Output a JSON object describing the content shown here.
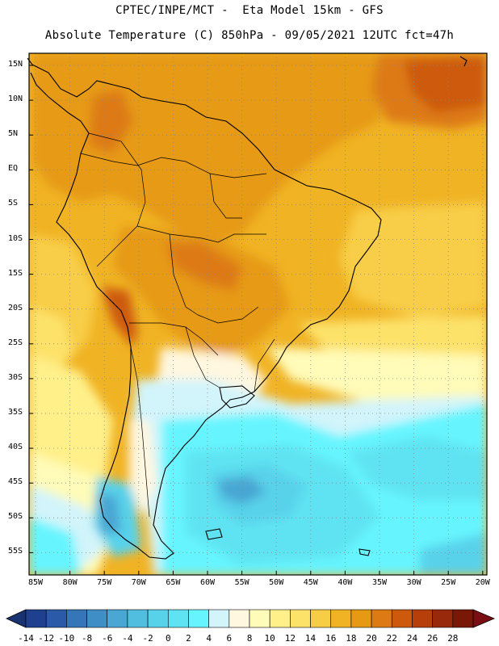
{
  "title_line1": "CPTEC/INPE/MCT -  Eta Model 15km - GFS",
  "title_line2": "Absolute Temperature (C) 850hPa - 09/05/2021 12UTC fct=47h",
  "lat_labels": [
    "15N",
    "10N",
    "5N",
    "EQ",
    "5S",
    "10S",
    "15S",
    "20S",
    "25S",
    "30S",
    "35S",
    "40S",
    "45S",
    "50S",
    "55S"
  ],
  "lon_labels": [
    "85W",
    "80W",
    "75W",
    "70W",
    "65W",
    "60W",
    "55W",
    "50W",
    "45W",
    "40W",
    "35W",
    "30W",
    "25W",
    "20W"
  ],
  "colorbar": {
    "labels": [
      "-14",
      "-12",
      "-10",
      "-8",
      "-6",
      "-4",
      "-2",
      "0",
      "2",
      "4",
      "6",
      "8",
      "10",
      "12",
      "14",
      "16",
      "18",
      "20",
      "22",
      "24",
      "26",
      "28"
    ],
    "colors": [
      "#1f3f8f",
      "#2a5aa8",
      "#3576b8",
      "#3f8fc6",
      "#4aa6d3",
      "#52bedf",
      "#58d2ea",
      "#5fe3f2",
      "#66f5ff",
      "#d2f4fb",
      "#fff7e0",
      "#fffbb8",
      "#fff08a",
      "#fde26a",
      "#f8cd46",
      "#f0b324",
      "#e69a14",
      "#dd7a14",
      "#cd5a0c",
      "#b7400a",
      "#98290a",
      "#7a1808"
    ],
    "left_arrow_color": "#183272",
    "right_arrow_color": "#7a0e12"
  }
}
